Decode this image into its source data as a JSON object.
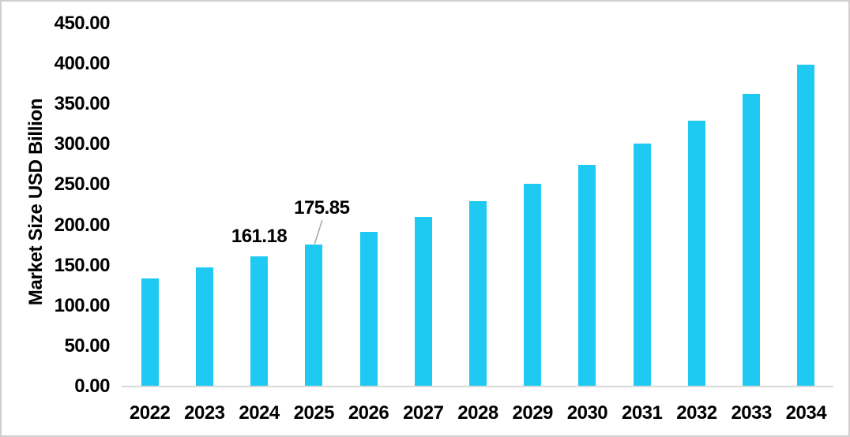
{
  "window": {
    "background": "#ffffff",
    "border_color": "#d0cece"
  },
  "chart_data": {
    "type": "bar",
    "title": "",
    "xlabel": "",
    "ylabel": "Market Size USD Billion",
    "categories": [
      "2022",
      "2023",
      "2024",
      "2025",
      "2026",
      "2027",
      "2028",
      "2029",
      "2030",
      "2031",
      "2032",
      "2033",
      "2034"
    ],
    "values": [
      134,
      148,
      161.18,
      175.85,
      192,
      210,
      230,
      251,
      275,
      301,
      330,
      363,
      399
    ],
    "ylim": [
      0,
      450
    ],
    "ytick_step": 50,
    "yticks": [
      {
        "value": 0,
        "label": "0.00"
      },
      {
        "value": 50,
        "label": "50.00"
      },
      {
        "value": 100,
        "label": "100.00"
      },
      {
        "value": 150,
        "label": "150.00"
      },
      {
        "value": 200,
        "label": "200.00"
      },
      {
        "value": 250,
        "label": "250.00"
      },
      {
        "value": 300,
        "label": "300.00"
      },
      {
        "value": 350,
        "label": "350.00"
      },
      {
        "value": 400,
        "label": "400.00"
      },
      {
        "value": 450,
        "label": "450.00"
      }
    ],
    "grid": false,
    "legend": false,
    "bar_color": "#1ec9f2",
    "axis_line_color": "#d9d9d9",
    "text_color": "#000000",
    "leader_line_color": "#a6a6a6",
    "data_labels": [
      {
        "category": "2024",
        "category_index": 2,
        "text": "161.18",
        "leader_line": false
      },
      {
        "category": "2025",
        "category_index": 3,
        "text": "175.85",
        "leader_line": true
      }
    ]
  }
}
